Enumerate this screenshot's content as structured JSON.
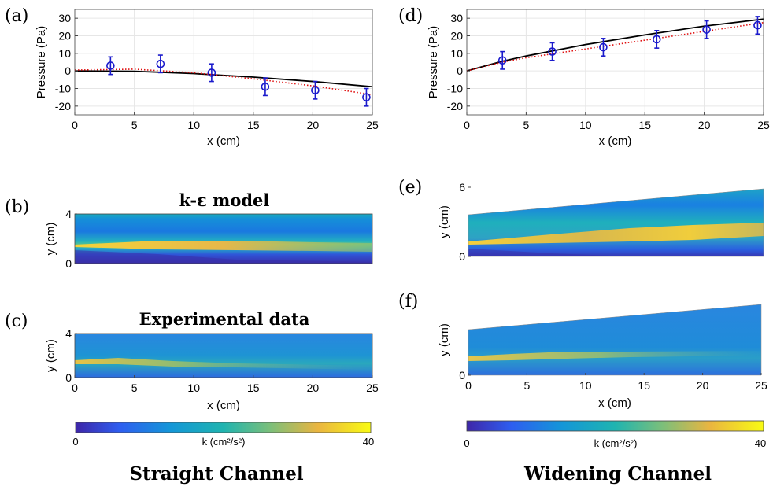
{
  "panel_labels": {
    "a": "(a)",
    "b": "(b)",
    "c": "(c)",
    "d": "(d)",
    "e": "(e)",
    "f": "(f)"
  },
  "titles": {
    "model": "k-ε model",
    "experimental": "Experimental data"
  },
  "captions": {
    "left": "Straight Channel",
    "right": "Widening Channel"
  },
  "colorbar": {
    "label": "k (cm²/s²)",
    "min": "0",
    "max": "40"
  },
  "colors": {
    "model_line": "#000000",
    "fit_line": "#e01010",
    "data_points": "#1a1acc"
  },
  "chart_data": [
    {
      "id": "a",
      "type": "line",
      "xlabel": "x (cm)",
      "ylabel": "Pressure (Pa)",
      "xlim": [
        0,
        25
      ],
      "ylim": [
        -25,
        35
      ],
      "xticks": [
        0,
        5,
        10,
        15,
        20,
        25
      ],
      "yticks": [
        -20,
        -10,
        0,
        10,
        20,
        30
      ],
      "grid": true,
      "series": [
        {
          "style": "solid",
          "color": "#000000",
          "x": [
            0,
            5,
            10,
            15,
            20,
            25
          ],
          "y": [
            0,
            -0.2,
            -1.5,
            -3.5,
            -6,
            -9
          ]
        },
        {
          "style": "dotted",
          "color": "#e01010",
          "x": [
            0,
            5,
            10,
            15,
            20,
            25
          ],
          "y": [
            0.5,
            1,
            -1,
            -4.5,
            -8.5,
            -13.5
          ]
        },
        {
          "style": "markers",
          "color": "#1a1acc",
          "x": [
            3,
            7.2,
            11.5,
            16,
            20.2,
            24.5
          ],
          "y": [
            3,
            4,
            -1,
            -9,
            -11,
            -15
          ],
          "err": [
            5,
            5,
            5,
            5,
            5,
            5
          ]
        }
      ]
    },
    {
      "id": "d",
      "type": "line",
      "xlabel": "x (cm)",
      "ylabel": "Pressure (Pa)",
      "xlim": [
        0,
        25
      ],
      "ylim": [
        -25,
        35
      ],
      "xticks": [
        0,
        5,
        10,
        15,
        20,
        25
      ],
      "yticks": [
        -20,
        -10,
        0,
        10,
        20,
        30
      ],
      "grid": true,
      "series": [
        {
          "style": "solid",
          "color": "#000000",
          "x": [
            0,
            3,
            5,
            10,
            15,
            20,
            25
          ],
          "y": [
            0,
            5.5,
            8.5,
            15,
            20.5,
            25.5,
            29.5
          ]
        },
        {
          "style": "dotted",
          "color": "#e01010",
          "x": [
            0,
            3,
            5,
            10,
            15,
            20,
            25
          ],
          "y": [
            0,
            5,
            7.5,
            12.5,
            17.5,
            22.5,
            27.5
          ]
        },
        {
          "style": "markers",
          "color": "#1a1acc",
          "x": [
            3,
            7.2,
            11.5,
            16,
            20.2,
            24.5
          ],
          "y": [
            6,
            11,
            13.5,
            18,
            23.5,
            26
          ],
          "err": [
            5,
            5,
            5,
            5,
            5,
            5
          ]
        }
      ]
    },
    {
      "id": "b",
      "type": "heatmap",
      "ylabel": "y (cm)",
      "yticks": [
        0,
        4
      ],
      "ylim": [
        0,
        4
      ],
      "xlim": [
        0,
        25
      ],
      "clim": [
        0,
        40
      ]
    },
    {
      "id": "c",
      "type": "heatmap",
      "xlabel": "x (cm)",
      "ylabel": "y (cm)",
      "xticks": [
        0,
        5,
        10,
        15,
        20,
        25
      ],
      "yticks": [
        0,
        4
      ],
      "ylim": [
        0,
        4
      ],
      "xlim": [
        0,
        25
      ],
      "clim": [
        0,
        40
      ]
    },
    {
      "id": "e",
      "type": "heatmap",
      "ylabel": "y (cm)",
      "yticks": [
        0,
        6
      ],
      "ylim": [
        0,
        6
      ],
      "xlim": [
        0,
        25
      ],
      "clim": [
        0,
        40
      ]
    },
    {
      "id": "f",
      "type": "heatmap",
      "xlabel": "x (cm)",
      "ylabel": "y (cm)",
      "xticks": [
        0,
        5,
        10,
        15,
        20,
        25
      ],
      "yticks": [
        0
      ],
      "ylim": [
        0,
        6
      ],
      "xlim": [
        0,
        25
      ],
      "clim": [
        0,
        40
      ]
    }
  ]
}
